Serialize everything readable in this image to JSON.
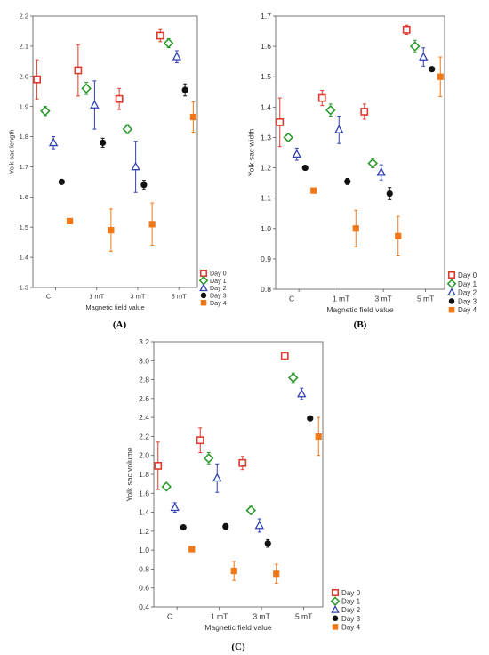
{
  "colors": {
    "day0": "#e03a2f",
    "day1": "#2e9a2e",
    "day2": "#3040b0",
    "day3": "#111111",
    "day4": "#f07818"
  },
  "markers": {
    "day0": "open-square",
    "day1": "open-diamond",
    "day2": "open-triangle",
    "day3": "filled-circle",
    "day4": "filled-square"
  },
  "chart_data": [
    {
      "type": "scatter",
      "panel_label": "(A)",
      "xlabel": "Magnetic field value",
      "ylabel": "Yolk sac length",
      "categories": [
        "C",
        "1 mT",
        "3 mT",
        "5 mT"
      ],
      "ylim": [
        1.3,
        2.2
      ],
      "yticks": [
        "1.3",
        "1.4",
        "1.5",
        "1.6",
        "1.7",
        "1.8",
        "1.9",
        "2.0",
        "2.1",
        "2.2"
      ],
      "grid": false,
      "legend": "bottom-right",
      "series": [
        {
          "name": "Day 0",
          "values": [
            1.99,
            2.02,
            1.925,
            2.135
          ],
          "err": [
            0.065,
            0.085,
            0.035,
            0.02
          ]
        },
        {
          "name": "Day 1",
          "values": [
            1.885,
            1.96,
            1.825,
            2.11
          ],
          "err": [
            0.015,
            0.02,
            0.015,
            0.015
          ]
        },
        {
          "name": "Day 2",
          "values": [
            1.78,
            1.905,
            1.7,
            2.065
          ],
          "err": [
            0.02,
            0.08,
            0.085,
            0.02
          ]
        },
        {
          "name": "Day 3",
          "values": [
            1.65,
            1.78,
            1.64,
            1.955
          ],
          "err": [
            0.005,
            0.015,
            0.015,
            0.02
          ]
        },
        {
          "name": "Day 4",
          "values": [
            1.52,
            1.49,
            1.51,
            1.865
          ],
          "err": [
            0.005,
            0.07,
            0.07,
            0.05
          ]
        }
      ]
    },
    {
      "type": "scatter",
      "panel_label": "(B)",
      "xlabel": "Magnetic field value",
      "ylabel": "Yolk sac width",
      "categories": [
        "C",
        "1 mT",
        "3 mT",
        "5 mT"
      ],
      "ylim": [
        0.8,
        1.7
      ],
      "yticks": [
        "0.8",
        "0.9",
        "1.0",
        "1.1",
        "1.2",
        "1.3",
        "1.4",
        "1.5",
        "1.6",
        "1.7"
      ],
      "grid": false,
      "legend": "bottom-right",
      "series": [
        {
          "name": "Day 0",
          "values": [
            1.35,
            1.43,
            1.385,
            1.655
          ],
          "err": [
            0.08,
            0.025,
            0.025,
            0.015
          ]
        },
        {
          "name": "Day 1",
          "values": [
            1.3,
            1.39,
            1.215,
            1.6
          ],
          "err": [
            0.005,
            0.02,
            0.015,
            0.02
          ]
        },
        {
          "name": "Day 2",
          "values": [
            1.245,
            1.325,
            1.185,
            1.565
          ],
          "err": [
            0.02,
            0.045,
            0.025,
            0.03
          ]
        },
        {
          "name": "Day 3",
          "values": [
            1.2,
            1.155,
            1.115,
            1.525
          ],
          "err": [
            0.005,
            0.01,
            0.02,
            0.005
          ]
        },
        {
          "name": "Day 4",
          "values": [
            1.125,
            1.0,
            0.975,
            1.5
          ],
          "err": [
            0.005,
            0.06,
            0.065,
            0.065
          ]
        }
      ]
    },
    {
      "type": "scatter",
      "panel_label": "(C)",
      "xlabel": "Magnetic field value",
      "ylabel": "Yolk sac volume",
      "categories": [
        "C",
        "1 mT",
        "3 mT",
        "5 mT"
      ],
      "ylim": [
        0.4,
        3.2
      ],
      "yticks": [
        "0.4",
        "0.6",
        "0.8",
        "1.0",
        "1.2",
        "1.4",
        "1.6",
        "1.8",
        "2.0",
        "2.2",
        "2.4",
        "2.6",
        "2.8",
        "3.0",
        "3.2"
      ],
      "grid": false,
      "legend": "bottom-right",
      "series": [
        {
          "name": "Day 0",
          "values": [
            1.89,
            2.16,
            1.92,
            3.05
          ],
          "err": [
            0.25,
            0.13,
            0.07,
            0.04
          ]
        },
        {
          "name": "Day 1",
          "values": [
            1.67,
            1.97,
            1.42,
            2.82
          ],
          "err": [
            0.01,
            0.06,
            0.04,
            0.05
          ]
        },
        {
          "name": "Day 2",
          "values": [
            1.45,
            1.76,
            1.26,
            2.65
          ],
          "err": [
            0.05,
            0.15,
            0.07,
            0.06
          ]
        },
        {
          "name": "Day 3",
          "values": [
            1.24,
            1.25,
            1.07,
            2.39
          ],
          "err": [
            0.01,
            0.03,
            0.04,
            0.02
          ]
        },
        {
          "name": "Day 4",
          "values": [
            1.01,
            0.78,
            0.75,
            2.2
          ],
          "err": [
            0.01,
            0.1,
            0.1,
            0.2
          ]
        }
      ]
    }
  ]
}
